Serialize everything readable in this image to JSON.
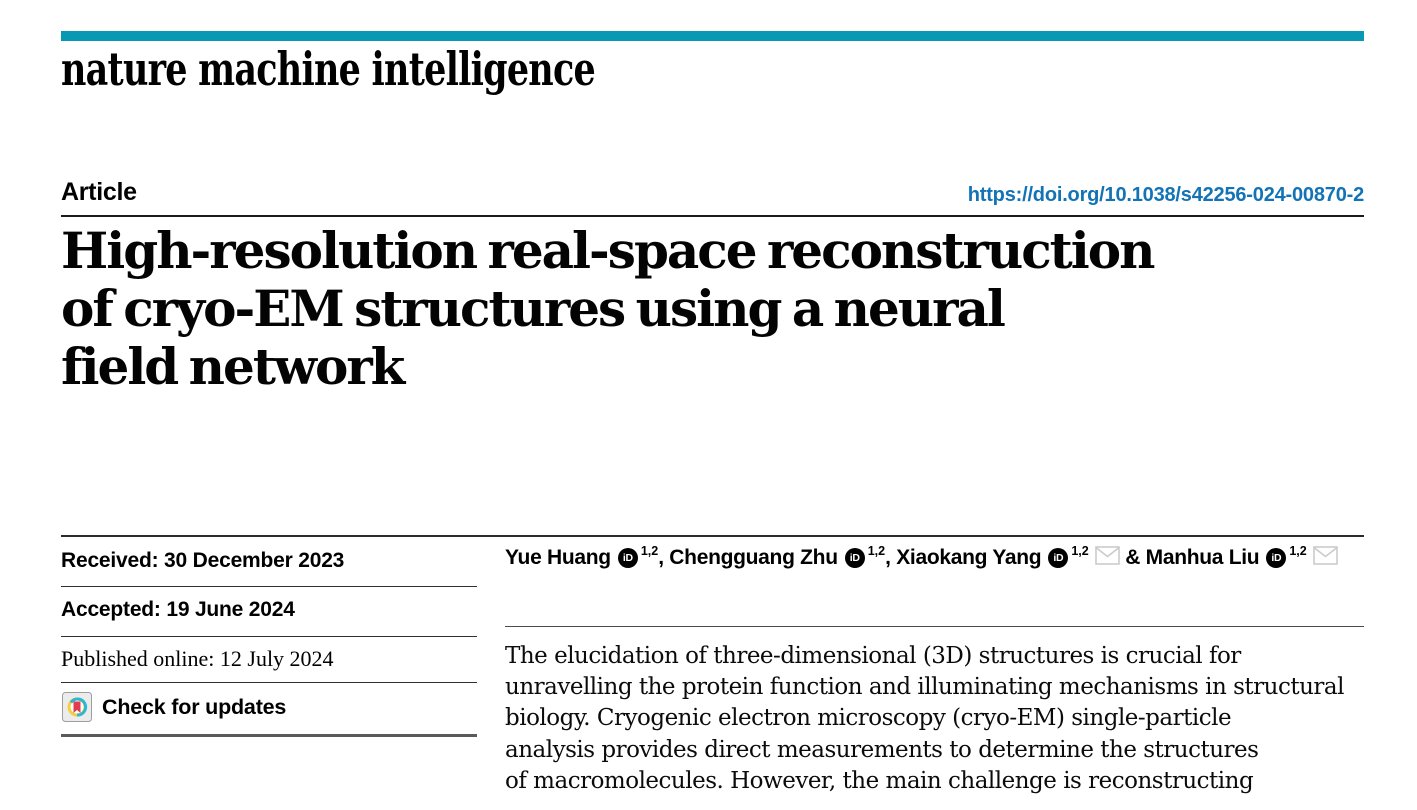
{
  "brand": {
    "name": "nature machine intelligence",
    "accent_color": "#0898b4"
  },
  "header": {
    "article_label": "Article",
    "doi": "https://doi.org/10.1038/s42256-024-00870-2",
    "doi_color": "#1273b6"
  },
  "title": {
    "lines": [
      "High-resolution real-space reconstruction",
      "of cryo-EM structures using a neural",
      "field network"
    ]
  },
  "sidebar": {
    "received": "Received: 30 December 2023",
    "accepted": "Accepted: 19 June 2024",
    "published_online": "Published online: 12 July 2024",
    "check_for_updates": "Check for updates"
  },
  "authors": {
    "orcid_icon_label": "iD",
    "items": [
      {
        "name": "Yue Huang",
        "sup": "1,2",
        "envelope": false,
        "sep": ", "
      },
      {
        "name": "Chengguang Zhu",
        "sup": "1,2",
        "envelope": false,
        "sep": ", "
      },
      {
        "name": "Xiaokang Yang",
        "sup": "1,2",
        "envelope": true,
        "sep": " & "
      },
      {
        "name": "Manhua Liu",
        "sup": "1,2",
        "envelope": true,
        "sep": ""
      }
    ]
  },
  "abstract": {
    "lines": [
      "The elucidation of three-dimensional (3D) structures is crucial for",
      "unravelling the protein function and illuminating mechanisms in structural",
      "biology. Cryogenic electron microscopy (cryo-EM) single-particle",
      "analysis provides direct measurements to determine the structures",
      "of macromolecules. However, the main challenge is reconstructing"
    ]
  },
  "icons": {
    "crossmark_ring_teal": "#2cb8d2",
    "crossmark_ring_yellow": "#f5cf3f",
    "crossmark_bookmark_red": "#e23d4e"
  }
}
